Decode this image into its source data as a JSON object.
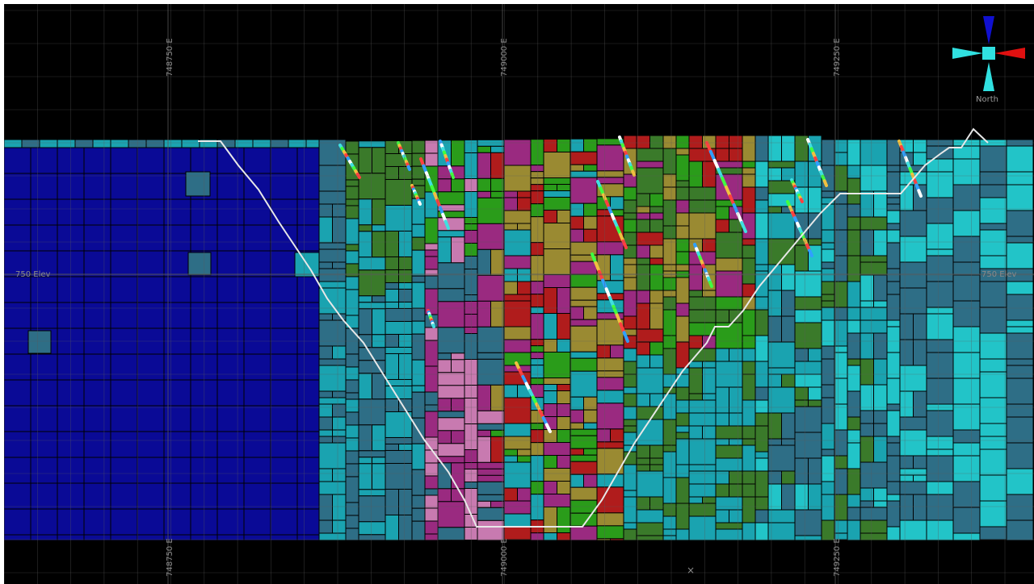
{
  "grid": {
    "easting_labels": [
      "748750 E",
      "749000 E",
      "749250 E"
    ],
    "elevation_label": "750 Elev"
  },
  "compass": {
    "label": "North"
  },
  "colors": {
    "background": "#000000",
    "grid_line": "#5a5a5a",
    "pit_outline": "#e8e8e8",
    "block_outline": "#000000",
    "blue": "#0a0a96",
    "teal_dark": "#2e6e86",
    "teal": "#1aa3b0",
    "cyan": "#22c4c8",
    "green": "#2a9c1a",
    "green_dark": "#3a7a2a",
    "olive": "#9a8a32",
    "red": "#b01c1c",
    "magenta": "#9a2a80",
    "pink": "#c87ab0",
    "compass_up": "#1010d0",
    "compass_side": "#30e0e0",
    "compass_right": "#e01010"
  },
  "view": {
    "cursor_marker": "×"
  }
}
